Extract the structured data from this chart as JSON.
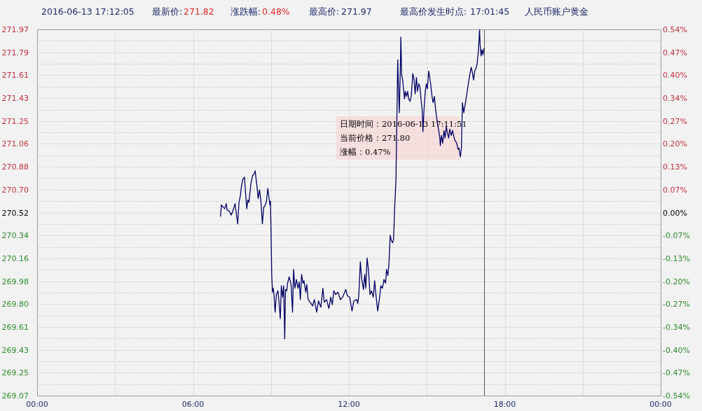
{
  "chart_data": {
    "type": "line",
    "title": "人民币账户黄金",
    "annotations": [
      "2016-06-13 17:12:05",
      "最新价:",
      "271.82",
      "涨跌幅:",
      "0.48%",
      "最高价:",
      "271.97",
      "最高价发生时点:",
      "17:01:45",
      "日期时间：2016-06-13 17:11:51",
      "当前价格：271.80",
      "涨幅：0.47%"
    ],
    "x": [
      7.06,
      7.09,
      7.13,
      7.22,
      7.28,
      7.31,
      7.4,
      7.47,
      7.53,
      7.62,
      7.66,
      7.72,
      7.77,
      7.82,
      7.86,
      7.91,
      7.98,
      8.02,
      8.07,
      8.11,
      8.15,
      8.23,
      8.29,
      8.36,
      8.39,
      8.45,
      8.51,
      8.56,
      8.61,
      8.67,
      8.72,
      8.78,
      8.82,
      8.88,
      8.91,
      8.96,
      8.98,
      9.0,
      9.03,
      9.06,
      9.09,
      9.12,
      9.16,
      9.21,
      9.27,
      9.31,
      9.36,
      9.4,
      9.45,
      9.49,
      9.53,
      9.56,
      9.61,
      9.64,
      9.7,
      9.74,
      9.78,
      9.83,
      9.87,
      9.92,
      9.98,
      10.04,
      10.09,
      10.13,
      10.18,
      10.23,
      10.27,
      10.34,
      10.38,
      10.43,
      10.51,
      10.6,
      10.67,
      10.76,
      10.83,
      10.92,
      11.0,
      11.05,
      11.14,
      11.23,
      11.3,
      11.36,
      11.42,
      11.49,
      11.58,
      11.67,
      11.76,
      11.88,
      11.94,
      12.03,
      12.12,
      12.19,
      12.3,
      12.34,
      12.38,
      12.44,
      12.49,
      12.56,
      12.61,
      12.65,
      12.7,
      12.76,
      12.81,
      12.87,
      12.94,
      12.99,
      13.05,
      13.11,
      13.17,
      13.23,
      13.29,
      13.35,
      13.41,
      13.45,
      13.5,
      13.54,
      13.59,
      13.63,
      13.68,
      13.72,
      13.76,
      13.81,
      13.88,
      13.9,
      13.94,
      13.98,
      14.0,
      14.03,
      14.07,
      14.1,
      14.14,
      14.17,
      14.22,
      14.26,
      14.3,
      14.35,
      14.4,
      14.46,
      14.51,
      14.55,
      14.6,
      14.64,
      14.69,
      14.73,
      14.78,
      14.82,
      14.85,
      14.89,
      14.94,
      14.98,
      15.02,
      15.07,
      15.14,
      15.2,
      15.24,
      15.29,
      15.34,
      15.41,
      15.45,
      15.5,
      15.52,
      15.56,
      15.61,
      15.66,
      15.7,
      15.75,
      15.79,
      15.84,
      15.88,
      15.94,
      15.99,
      16.03,
      16.08,
      16.15,
      16.2,
      16.24,
      16.29,
      16.33,
      16.37,
      16.42,
      16.47,
      16.51,
      16.57,
      16.62,
      16.66,
      16.71,
      16.75,
      16.8,
      16.84,
      16.89,
      16.93,
      16.98,
      17.03,
      17.05,
      17.09,
      17.12,
      17.16,
      17.2
    ],
    "series": [
      {
        "color": "#000066",
        "values": [
          270.49,
          270.58,
          270.57,
          270.55,
          270.59,
          270.54,
          270.53,
          270.5,
          270.53,
          270.59,
          270.52,
          270.43,
          270.6,
          270.65,
          270.72,
          270.78,
          270.8,
          270.68,
          270.55,
          270.62,
          270.6,
          270.75,
          270.81,
          270.83,
          270.85,
          270.75,
          270.63,
          270.7,
          270.62,
          270.43,
          270.56,
          270.58,
          270.6,
          270.71,
          270.66,
          270.58,
          270.61,
          270.4,
          270.02,
          269.89,
          269.92,
          269.86,
          269.73,
          269.87,
          269.9,
          269.81,
          269.68,
          269.94,
          269.85,
          269.94,
          269.52,
          269.91,
          269.9,
          269.96,
          270.01,
          269.98,
          269.94,
          269.73,
          270.07,
          269.92,
          269.99,
          269.92,
          269.97,
          269.83,
          270.03,
          269.96,
          269.98,
          269.89,
          269.95,
          269.83,
          269.81,
          269.78,
          269.83,
          269.73,
          269.82,
          269.77,
          269.92,
          269.81,
          269.83,
          269.76,
          269.85,
          269.79,
          269.9,
          269.87,
          269.89,
          269.83,
          269.85,
          269.91,
          269.86,
          269.85,
          269.74,
          269.82,
          269.83,
          269.8,
          269.86,
          270.13,
          270.0,
          269.91,
          270.03,
          269.92,
          270.16,
          270.05,
          269.87,
          269.9,
          269.85,
          269.98,
          269.85,
          269.74,
          269.83,
          269.94,
          269.92,
          269.99,
          269.96,
          270.07,
          270.02,
          270.11,
          270.34,
          270.3,
          270.28,
          270.31,
          270.55,
          270.77,
          271.73,
          271.57,
          271.31,
          271.66,
          271.91,
          271.61,
          271.57,
          271.5,
          271.42,
          271.48,
          271.44,
          271.48,
          271.42,
          271.4,
          271.44,
          271.62,
          271.57,
          271.46,
          271.59,
          271.48,
          271.54,
          271.52,
          271.41,
          271.33,
          271.16,
          271.33,
          271.48,
          271.54,
          271.5,
          271.64,
          271.55,
          271.44,
          271.39,
          271.44,
          271.33,
          271.22,
          271.18,
          271.11,
          271.05,
          271.13,
          271.07,
          271.17,
          271.11,
          271.2,
          271.15,
          271.11,
          271.18,
          271.13,
          271.17,
          271.13,
          271.09,
          271.07,
          271.02,
          271.03,
          270.96,
          271.03,
          271.39,
          271.31,
          271.37,
          271.42,
          271.5,
          271.57,
          271.62,
          271.67,
          271.63,
          271.57,
          271.64,
          271.66,
          271.69,
          271.79,
          271.97,
          271.85,
          271.76,
          271.81,
          271.77,
          271.82
        ]
      }
    ],
    "xlim": [
      0,
      24
    ],
    "xticks": [
      {
        "value": 0,
        "label": "00:00"
      },
      {
        "value": 3,
        "label": null
      },
      {
        "value": 6,
        "label": "06:00"
      },
      {
        "value": 9,
        "label": null
      },
      {
        "value": 12,
        "label": "12:00"
      },
      {
        "value": 15,
        "label": null
      },
      {
        "value": 18,
        "label": "18:00"
      },
      {
        "value": 21,
        "label": null
      },
      {
        "value": 24,
        "label": "00:00"
      }
    ],
    "ylim": [
      269.07,
      271.97
    ],
    "yticks": [
      271.97,
      {
        "value": 271.879,
        "label": null
      },
      {
        "value": 271.78875,
        "label": "271.79"
      },
      {
        "value": 271.698,
        "label": null
      },
      {
        "value": 271.6075,
        "label": "271.61"
      },
      {
        "value": 271.517,
        "label": null
      },
      {
        "value": 271.42625,
        "label": "271.43"
      },
      {
        "value": 271.335,
        "label": null
      },
      {
        "value": 271.245,
        "label": "271.25"
      },
      {
        "value": 271.154,
        "label": null
      },
      {
        "value": 271.06375,
        "label": "271.06"
      },
      {
        "value": 270.973,
        "label": null
      },
      {
        "value": 270.8825,
        "label": "270.88"
      },
      {
        "value": 270.792,
        "label": null
      },
      {
        "value": 270.70125,
        "label": "270.70"
      },
      {
        "value": 270.611,
        "label": null
      },
      270.52,
      {
        "value": 270.429,
        "label": null
      },
      {
        "value": 270.33875,
        "label": "270.34"
      },
      {
        "value": 270.248,
        "label": null
      },
      {
        "value": 270.1575,
        "label": "270.16"
      },
      {
        "value": 270.067,
        "label": null
      },
      {
        "value": 269.97625,
        "label": "269.98"
      },
      {
        "value": 269.886,
        "label": null
      },
      {
        "value": 269.795,
        "label": "269.80"
      },
      {
        "value": 269.704,
        "label": null
      },
      {
        "value": 269.61375,
        "label": "269.61"
      },
      {
        "value": 269.523,
        "label": null
      },
      {
        "value": 269.4325,
        "label": "269.43"
      },
      {
        "value": 269.342,
        "label": null
      },
      {
        "value": 269.25125,
        "label": "269.25"
      },
      {
        "value": 269.161,
        "label": null
      },
      269.07
    ],
    "y2lim": [
      -0.54,
      0.54
    ],
    "y2ticks": [
      {
        "value": 0.54,
        "label": "0.54%"
      },
      {
        "value": 0.4725,
        "label": "0.47%"
      },
      {
        "value": 0.405,
        "label": "0.40%"
      },
      {
        "value": 0.3375,
        "label": "0.34%"
      },
      {
        "value": 0.27,
        "label": "0.27%"
      },
      {
        "value": 0.2025,
        "label": "0.20%"
      },
      {
        "value": 0.135,
        "label": "0.13%"
      },
      {
        "value": 0.0675,
        "label": "0.07%"
      },
      {
        "value": 0,
        "label": "0.00%"
      },
      {
        "value": -0.0675,
        "label": "-0.07%"
      },
      {
        "value": -0.135,
        "label": "-0.13%"
      },
      {
        "value": -0.2025,
        "label": "-0.20%"
      },
      {
        "value": -0.27,
        "label": "-0.27%"
      },
      {
        "value": -0.3375,
        "label": "-0.34%"
      },
      {
        "value": -0.405,
        "label": "-0.40%"
      },
      {
        "value": -0.4725,
        "label": "-0.47%"
      },
      {
        "value": -0.54,
        "label": "-0.54%"
      }
    ],
    "grid": true,
    "ref_lines": [
      {
        "axis": "x",
        "value": 17.1975,
        "color": "#555555"
      }
    ]
  }
}
